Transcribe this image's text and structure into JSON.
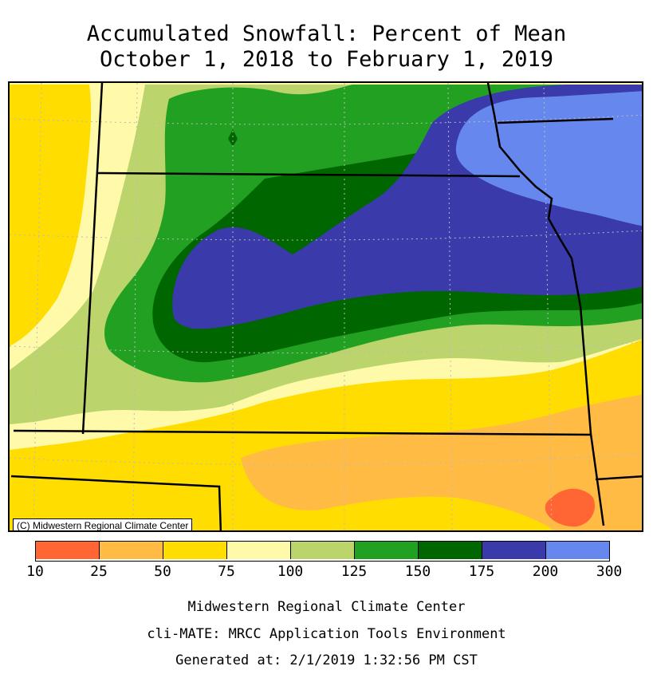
{
  "header": {
    "title_line1": "Accumulated Snowfall: Percent of Mean",
    "title_line2": "October 1, 2018 to February 1, 2019"
  },
  "map": {
    "credit": "(C) Midwestern Regional Climate Center",
    "colors": {
      "10-25": "#ff6633",
      "25-50": "#ffbb44",
      "50-75": "#ffdd00",
      "75-100": "#fff9aa",
      "100-125": "#bbd46b",
      "125-150": "#22a022",
      "150-175": "#006600",
      "175-200": "#3a3aaa",
      "200-300": "#6688ee"
    }
  },
  "legend": {
    "bins": [
      {
        "color": "#ff6633"
      },
      {
        "color": "#ffbb44"
      },
      {
        "color": "#ffdd00"
      },
      {
        "color": "#fff9aa"
      },
      {
        "color": "#bbd46b"
      },
      {
        "color": "#22a022"
      },
      {
        "color": "#006600"
      },
      {
        "color": "#3a3aaa"
      },
      {
        "color": "#6688ee"
      }
    ],
    "ticks": [
      "10",
      "25",
      "50",
      "75",
      "100",
      "125",
      "150",
      "175",
      "200",
      "300"
    ]
  },
  "footer": {
    "line1": "Midwestern Regional Climate Center",
    "line2": "cli-MATE: MRCC Application Tools Environment",
    "line3": "Generated at: 2/1/2019 1:32:56 PM CST"
  }
}
